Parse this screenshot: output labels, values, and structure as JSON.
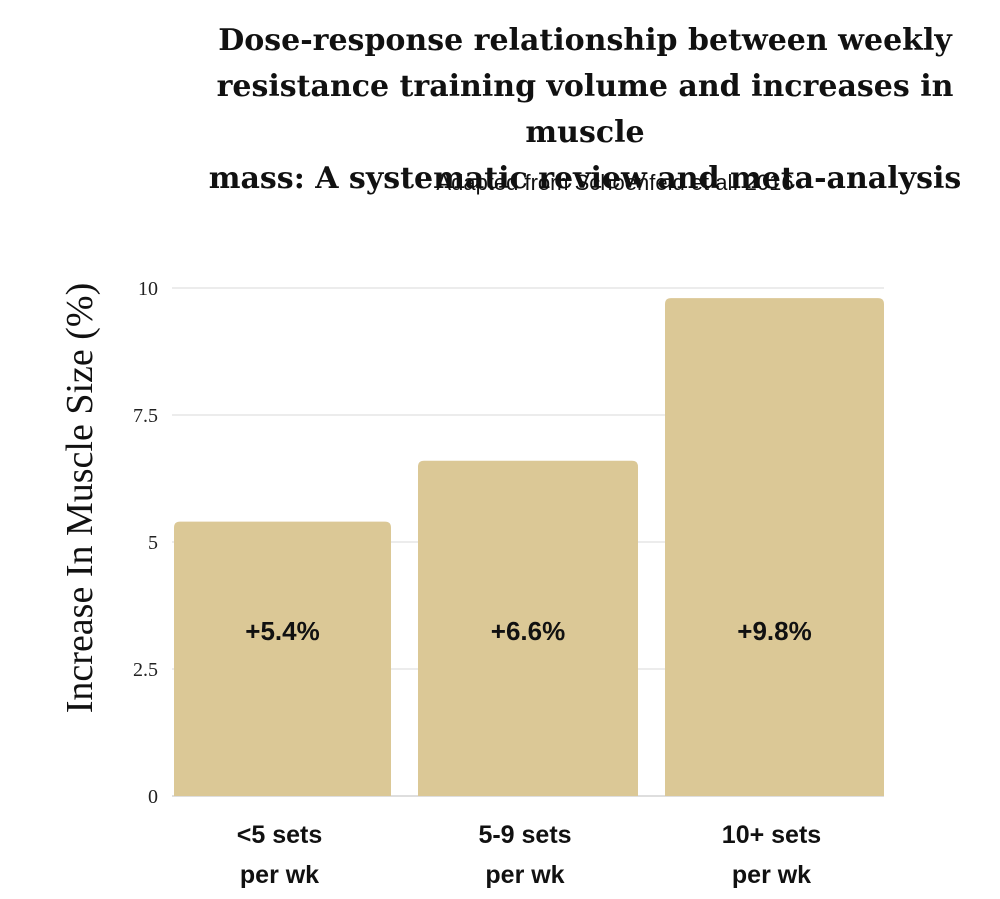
{
  "chart_data": {
    "type": "bar",
    "title_lines": [
      "Dose-response relationship between weekly",
      "resistance training volume and increases in muscle",
      "mass: A systematic review and meta-analysis"
    ],
    "subtitle": "Adapted from Schoenfeld et al. 2016",
    "xlabel": "",
    "ylabel": "Increase In Muscle Size (%)",
    "ylim": [
      0,
      10
    ],
    "yticks": [
      0,
      2.5,
      5,
      7.5,
      10
    ],
    "ytick_labels": [
      "0",
      "2.5",
      "5",
      "7.5",
      "10"
    ],
    "grid": true,
    "categories": [
      [
        "<5 sets",
        "per wk"
      ],
      [
        "5-9 sets",
        "per wk"
      ],
      [
        "10+ sets",
        "per wk"
      ]
    ],
    "values": [
      5.4,
      6.6,
      9.8
    ],
    "data_labels": [
      "+5.4%",
      "+6.6%",
      "+9.8%"
    ],
    "bar_color": "#dbc896",
    "grid_color": "#d9d9d9"
  }
}
